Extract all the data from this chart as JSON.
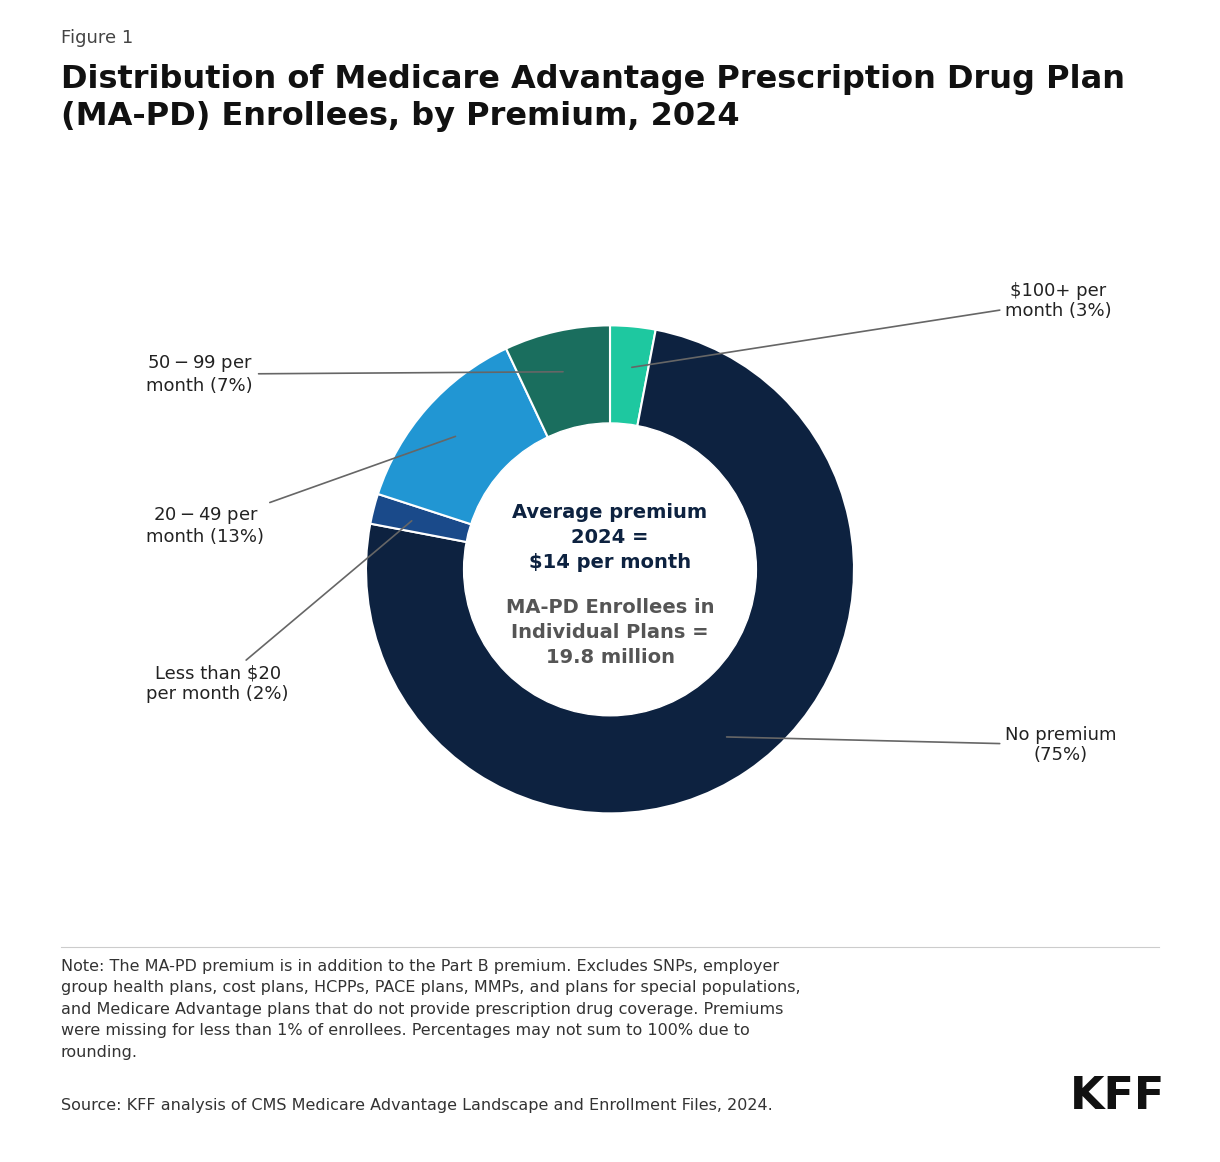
{
  "figure_label": "Figure 1",
  "title": "Distribution of Medicare Advantage Prescription Drug Plan\n(MA-PD) Enrollees, by Premium, 2024",
  "sizes_ordered": [
    3,
    75,
    2,
    13,
    7
  ],
  "colors_ordered": [
    "#0d2240",
    "#0d2240",
    "#1a4a8a",
    "#2196d3",
    "#1a6e5e"
  ],
  "slice_labels": [
    "$100+ per\nmonth (3%)",
    "No premium\n(75%)",
    "Less than $20\nper month (2%)",
    "$20-$49 per\nmonth (13%)",
    "$50-$99 per\nmonth (7%)"
  ],
  "center_text_top": "Average premium\n2024 =\n$14 per month",
  "center_text_bottom": "MA-PD Enrollees in\nIndividual Plans =\n19.8 million",
  "note": "Note: The MA-PD premium is in addition to the Part B premium. Excludes SNPs, employer\ngroup health plans, cost plans, HCPPs, PACE plans, MMPs, and plans for special populations,\nand Medicare Advantage plans that do not provide prescription drug coverage. Premiums\nwere missing for less than 1% of enrollees. Percentages may not sum to 100% due to\nrounding.",
  "source": "Source: KFF analysis of CMS Medicare Advantage Landscape and Enrollment Files, 2024.",
  "background_color": "#ffffff",
  "dark_navy": "#0d2240",
  "teal_dark": "#1a6e5e",
  "teal_bright": "#1fc8a0",
  "blue_medium": "#2196d3",
  "blue_dark": "#1a4a8a",
  "label_color": "#222222",
  "arrow_color": "#666666"
}
